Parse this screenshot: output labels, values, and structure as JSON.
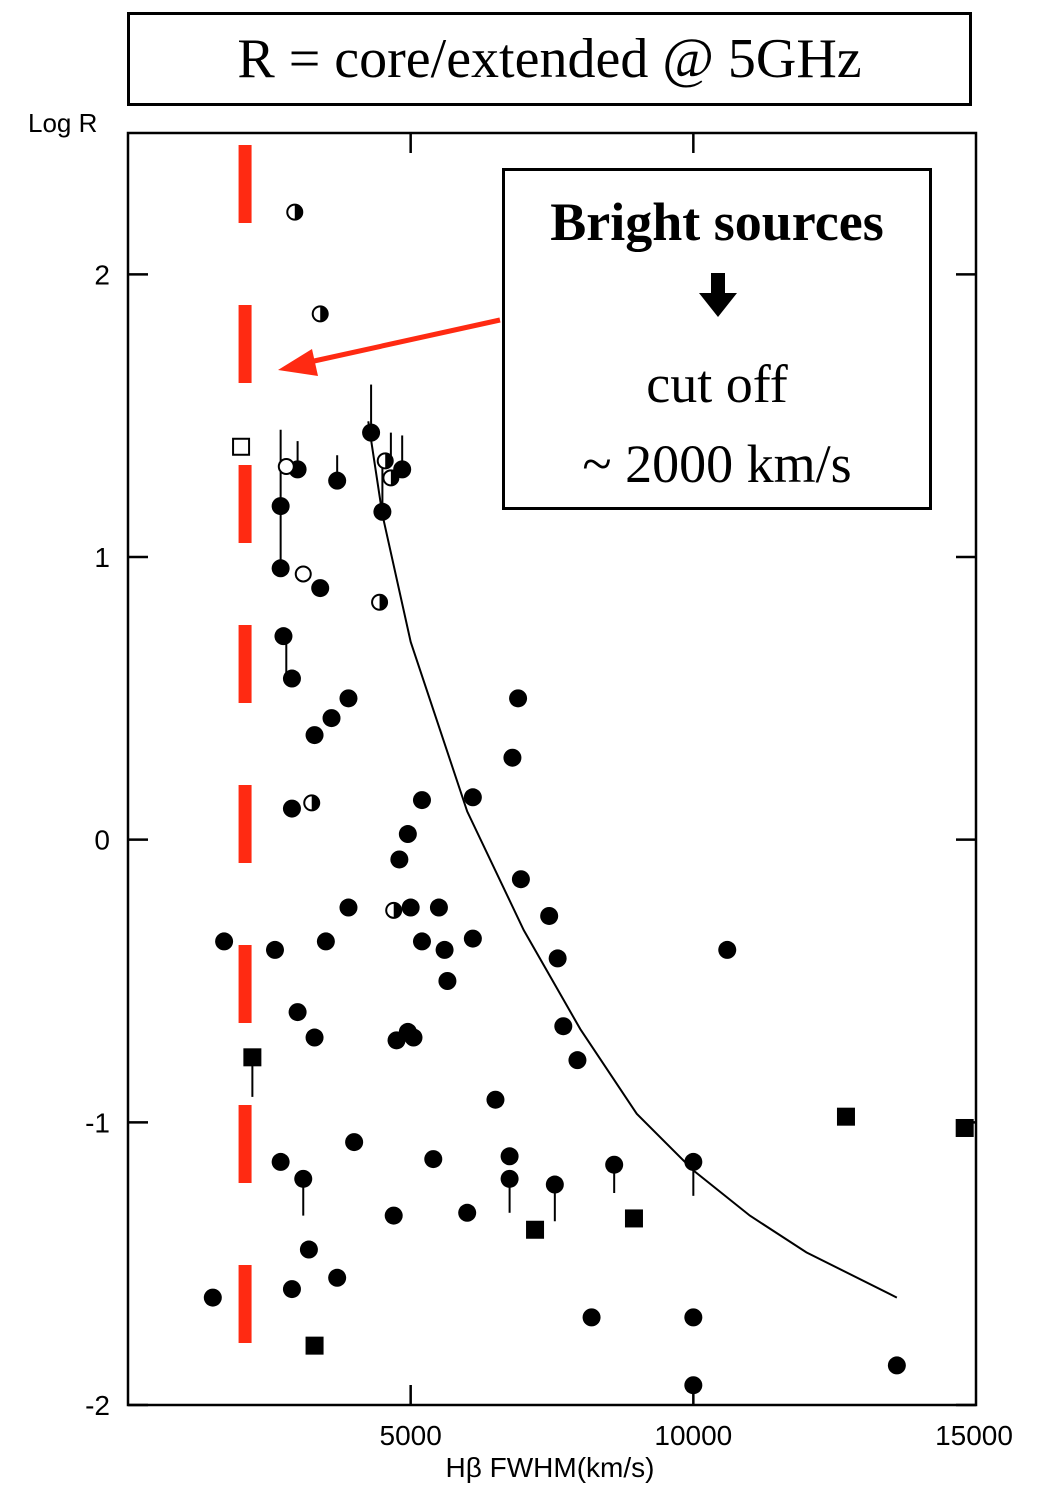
{
  "chart_data": {
    "type": "scatter",
    "title": "R = core/extended @ 5GHz",
    "xlabel": "Hβ FWHM(km/s)",
    "ylabel": "Log R",
    "xlim": [
      0,
      15000
    ],
    "ylim": [
      -2,
      2.5
    ],
    "x_ticks": [
      5000,
      10000,
      15000
    ],
    "y_ticks": [
      -2,
      -1,
      0,
      1,
      2
    ],
    "x_tick_labels": [
      "5000",
      "10000",
      "15000"
    ],
    "y_tick_labels": [
      "-2",
      "-1",
      "0",
      "1",
      "2"
    ],
    "grid": false,
    "cutoff_line": {
      "x": 2000,
      "color": "#ff2a12"
    },
    "curve": [
      [
        4250,
        1.48
      ],
      [
        4500,
        1.15
      ],
      [
        5000,
        0.7
      ],
      [
        6000,
        0.1
      ],
      [
        7000,
        -0.32
      ],
      [
        8000,
        -0.67
      ],
      [
        9000,
        -0.97
      ],
      [
        10000,
        -1.17
      ],
      [
        11000,
        -1.33
      ],
      [
        12000,
        -1.46
      ],
      [
        13600,
        -1.62
      ]
    ],
    "series": [
      {
        "marker": "filled-circle",
        "points": [
          [
            2700,
            1.18
          ],
          [
            2700,
            0.96
          ],
          [
            3000,
            1.31
          ],
          [
            3400,
            0.89
          ],
          [
            3700,
            1.27
          ],
          [
            2750,
            0.72
          ],
          [
            2900,
            0.57
          ],
          [
            3300,
            0.37
          ],
          [
            3600,
            0.43
          ],
          [
            3900,
            0.5
          ],
          [
            2900,
            0.11
          ],
          [
            4300,
            1.44
          ],
          [
            4500,
            1.16
          ],
          [
            4850,
            1.31
          ],
          [
            6900,
            0.5
          ],
          [
            6800,
            0.29
          ],
          [
            5200,
            0.14
          ],
          [
            6100,
            0.15
          ],
          [
            4950,
            0.02
          ],
          [
            4800,
            -0.07
          ],
          [
            6950,
            -0.14
          ],
          [
            3900,
            -0.24
          ],
          [
            5000,
            -0.24
          ],
          [
            5500,
            -0.24
          ],
          [
            7450,
            -0.27
          ],
          [
            1700,
            -0.36
          ],
          [
            2600,
            -0.39
          ],
          [
            3500,
            -0.36
          ],
          [
            5200,
            -0.36
          ],
          [
            5600,
            -0.39
          ],
          [
            6100,
            -0.35
          ],
          [
            7600,
            -0.42
          ],
          [
            10600,
            -0.39
          ],
          [
            5650,
            -0.5
          ],
          [
            3000,
            -0.61
          ],
          [
            3300,
            -0.7
          ],
          [
            4750,
            -0.71
          ],
          [
            4950,
            -0.68
          ],
          [
            5050,
            -0.7
          ],
          [
            7700,
            -0.66
          ],
          [
            7950,
            -0.78
          ],
          [
            6500,
            -0.92
          ],
          [
            4000,
            -1.07
          ],
          [
            2700,
            -1.14
          ],
          [
            3100,
            -1.2
          ],
          [
            5400,
            -1.13
          ],
          [
            6750,
            -1.12
          ],
          [
            6750,
            -1.2
          ],
          [
            7550,
            -1.22
          ],
          [
            8600,
            -1.15
          ],
          [
            10000,
            -1.14
          ],
          [
            4700,
            -1.33
          ],
          [
            6000,
            -1.32
          ],
          [
            3200,
            -1.45
          ],
          [
            3700,
            -1.55
          ],
          [
            1500,
            -1.62
          ],
          [
            2900,
            -1.59
          ],
          [
            8200,
            -1.69
          ],
          [
            10000,
            -1.69
          ],
          [
            13600,
            -1.86
          ],
          [
            10000,
            -1.93
          ]
        ]
      },
      {
        "marker": "half-filled-circle",
        "points": [
          [
            2950,
            2.22
          ],
          [
            3400,
            1.86
          ],
          [
            4550,
            1.34
          ],
          [
            4650,
            1.28
          ],
          [
            4450,
            0.84
          ],
          [
            3250,
            0.13
          ],
          [
            4700,
            -0.25
          ]
        ]
      },
      {
        "marker": "open-circle",
        "points": [
          [
            2800,
            1.32
          ],
          [
            3100,
            0.94
          ]
        ]
      },
      {
        "marker": "open-square",
        "points": [
          [
            2000,
            1.39
          ]
        ]
      },
      {
        "marker": "filled-square",
        "points": [
          [
            2200,
            -0.77
          ],
          [
            3300,
            -1.79
          ],
          [
            7200,
            -1.38
          ],
          [
            8950,
            -1.34
          ],
          [
            12700,
            -0.98
          ],
          [
            14800,
            -1.02
          ]
        ]
      }
    ],
    "limit_ticks": [
      [
        2700,
        1.18,
        0.27
      ],
      [
        2700,
        0.96,
        0.2
      ],
      [
        3000,
        1.31,
        0.1
      ],
      [
        3700,
        1.27,
        0.09
      ],
      [
        4300,
        1.44,
        0.17
      ],
      [
        4500,
        1.16,
        0.16
      ],
      [
        4850,
        1.31,
        0.12
      ],
      [
        4650,
        1.34,
        0.1
      ],
      [
        2800,
        0.57,
        0.15
      ],
      [
        2200,
        -0.77,
        -0.14
      ],
      [
        3100,
        -1.2,
        -0.13
      ],
      [
        6750,
        -1.2,
        -0.12
      ],
      [
        7550,
        -1.22,
        -0.13
      ],
      [
        8600,
        -1.15,
        -0.1
      ],
      [
        10000,
        -1.14,
        -0.12
      ]
    ]
  },
  "annotation": {
    "heading": "Bright sources",
    "line1": "cut off",
    "line2": "~ 2000 km/s",
    "arrow_color": "#ff2a12"
  }
}
